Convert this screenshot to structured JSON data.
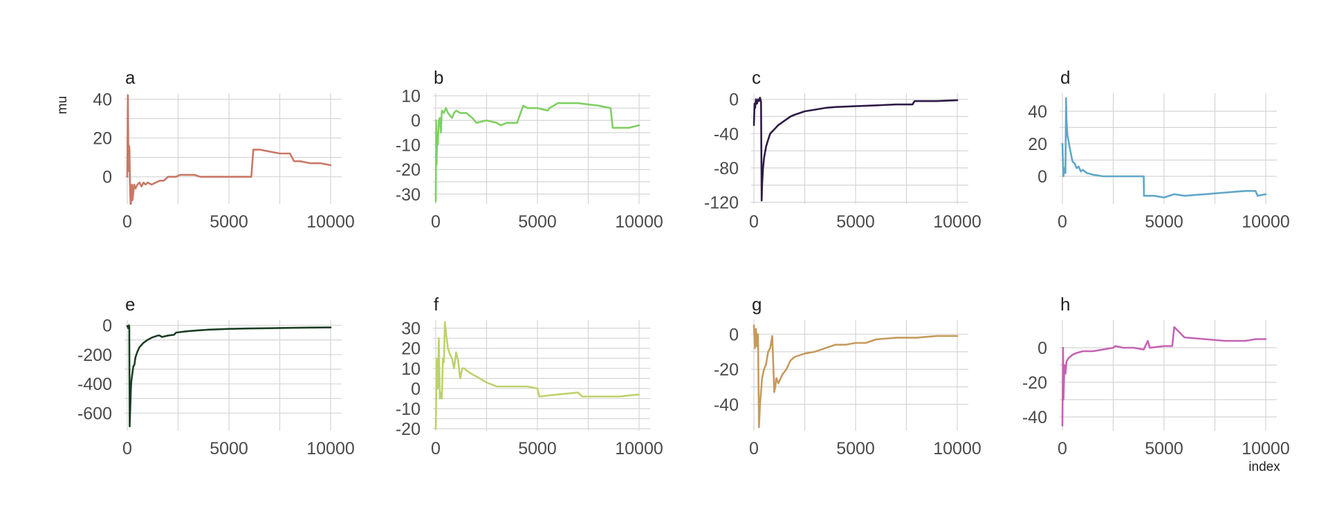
{
  "figure": {
    "ylabel": "mu",
    "xlabel": "index"
  },
  "colors": {
    "grid": "#d4d4d4",
    "tick": "#4a4a4a"
  },
  "chart_data": [
    {
      "panel": "a",
      "type": "line",
      "color": "#c97765",
      "xlim": [
        0,
        10000
      ],
      "ylim": [
        -14,
        43
      ],
      "x_ticks": [
        0,
        5000,
        10000
      ],
      "x_tick_labels": [
        "0",
        "5000",
        "10000"
      ],
      "y_ticks": [
        40,
        20,
        0
      ],
      "y_tick_labels": [
        "40",
        "20",
        "0"
      ],
      "series": [
        {
          "x": [
            0,
            30,
            60,
            90,
            110,
            130,
            160,
            180,
            200,
            230,
            260,
            300,
            340,
            400,
            450,
            500,
            600,
            700,
            800,
            900,
            1000,
            1200,
            1400,
            1600,
            1800,
            2000,
            2200,
            2400,
            2600,
            2800,
            3000,
            3300,
            3600,
            4000,
            4500,
            5000,
            5500,
            6000,
            6100,
            6200,
            6500,
            7000,
            7500,
            8000,
            8200,
            8300,
            8500,
            9000,
            9500,
            10000
          ],
          "y": [
            0,
            42,
            3,
            16,
            14,
            -2,
            -14,
            -14,
            -7,
            -4,
            -12,
            -8,
            -4,
            -6,
            -5,
            -4,
            -3,
            -5,
            -3,
            -4,
            -3,
            -4,
            -3,
            -2,
            -2,
            0,
            0,
            0,
            1,
            1,
            1,
            1,
            0,
            0,
            0,
            0,
            0,
            0,
            0,
            14,
            14,
            13,
            12,
            12,
            8,
            8,
            8,
            7,
            7,
            6
          ]
        }
      ]
    },
    {
      "panel": "b",
      "type": "line",
      "color": "#7fcf62",
      "xlim": [
        0,
        10000
      ],
      "ylim": [
        -34,
        11
      ],
      "x_ticks": [
        0,
        5000,
        10000
      ],
      "x_tick_labels": [
        "0",
        "5000",
        "10000"
      ],
      "y_ticks": [
        10,
        0,
        -10,
        -20,
        -30
      ],
      "y_tick_labels": [
        "10",
        "0",
        "-10",
        "-20",
        "-30"
      ],
      "series": [
        {
          "x": [
            0,
            20,
            40,
            70,
            100,
            150,
            200,
            250,
            300,
            400,
            500,
            600,
            700,
            800,
            900,
            1000,
            1200,
            1500,
            1800,
            2000,
            2500,
            3000,
            3200,
            3500,
            4000,
            4300,
            4500,
            5000,
            5500,
            5600,
            6000,
            6500,
            7000,
            8000,
            8600,
            8700,
            9000,
            9500,
            10000
          ],
          "y": [
            -33,
            0,
            -18,
            -5,
            -10,
            0,
            1,
            -5,
            4,
            3,
            5,
            3,
            2,
            1,
            3,
            4,
            3,
            3,
            1,
            -1,
            0,
            -1,
            -2,
            -1,
            -1,
            6,
            5,
            5,
            4,
            5,
            7,
            7,
            7,
            6,
            5,
            -3,
            -3,
            -3,
            -2
          ]
        }
      ]
    },
    {
      "panel": "c",
      "type": "line",
      "color": "#2c1a45",
      "xlim": [
        0,
        10000
      ],
      "ylim": [
        -122,
        7
      ],
      "x_ticks": [
        0,
        5000,
        10000
      ],
      "x_tick_labels": [
        "0",
        "5000",
        "10000"
      ],
      "y_ticks": [
        0,
        -40,
        -80,
        -120
      ],
      "y_tick_labels": [
        "0",
        "-40",
        "-80",
        "-120"
      ],
      "series": [
        {
          "x": [
            0,
            30,
            60,
            100,
            150,
            200,
            250,
            300,
            350,
            380,
            400,
            450,
            500,
            600,
            700,
            800,
            1000,
            1200,
            1500,
            1800,
            2000,
            2500,
            3000,
            3500,
            4000,
            5000,
            6000,
            7000,
            7500,
            7800,
            7900,
            8500,
            9000,
            10000
          ],
          "y": [
            -30,
            -5,
            -10,
            0,
            -5,
            0,
            -2,
            2,
            -3,
            -118,
            -100,
            -80,
            -68,
            -55,
            -47,
            -40,
            -35,
            -30,
            -25,
            -20,
            -18,
            -14,
            -12,
            -10,
            -9,
            -8,
            -7,
            -6,
            -6,
            -6,
            -2,
            -2,
            -2,
            -1
          ]
        }
      ]
    },
    {
      "panel": "d",
      "type": "line",
      "color": "#5ea7c7",
      "xlim": [
        0,
        10000
      ],
      "ylim": [
        -17,
        51
      ],
      "x_ticks": [
        0,
        5000,
        10000
      ],
      "x_tick_labels": [
        "0",
        "5000",
        "10000"
      ],
      "y_ticks": [
        40,
        20,
        0
      ],
      "y_tick_labels": [
        "40",
        "20",
        "0"
      ],
      "series": [
        {
          "x": [
            0,
            50,
            100,
            150,
            180,
            200,
            250,
            300,
            350,
            400,
            450,
            500,
            600,
            700,
            800,
            900,
            1000,
            1200,
            1500,
            2000,
            2500,
            3000,
            3500,
            4000,
            4010,
            4500,
            5000,
            5500,
            6000,
            7000,
            8000,
            9000,
            9500,
            9600,
            10000
          ],
          "y": [
            20,
            0,
            5,
            2,
            48,
            35,
            25,
            22,
            18,
            15,
            12,
            9,
            8,
            5,
            6,
            3,
            4,
            2,
            1,
            0,
            0,
            0,
            0,
            0,
            -12,
            -12,
            -13,
            -11,
            -12,
            -11,
            -10,
            -9,
            -9,
            -12,
            -11
          ]
        }
      ]
    },
    {
      "panel": "e",
      "type": "line",
      "color": "#1c3d24",
      "xlim": [
        0,
        10000
      ],
      "ylim": [
        -720,
        35
      ],
      "x_ticks": [
        0,
        5000,
        10000
      ],
      "x_tick_labels": [
        "0",
        "5000",
        "10000"
      ],
      "y_ticks": [
        0,
        -200,
        -400,
        -600
      ],
      "y_tick_labels": [
        "0",
        "-200",
        "-400",
        "-600"
      ],
      "series": [
        {
          "x": [
            0,
            50,
            80,
            100,
            120,
            150,
            180,
            200,
            250,
            300,
            350,
            400,
            450,
            500,
            600,
            800,
            1000,
            1200,
            1500,
            1600,
            1700,
            2000,
            2300,
            2400,
            3000,
            3500,
            4000,
            5000,
            6000,
            7000,
            8000,
            9000,
            10000
          ],
          "y": [
            -5,
            -20,
            0,
            -10,
            -690,
            -560,
            -430,
            -380,
            -330,
            -280,
            -270,
            -220,
            -200,
            -180,
            -150,
            -120,
            -100,
            -85,
            -70,
            -70,
            -80,
            -70,
            -65,
            -50,
            -40,
            -35,
            -30,
            -25,
            -22,
            -20,
            -18,
            -16,
            -15
          ]
        }
      ]
    },
    {
      "panel": "f",
      "type": "line",
      "color": "#bdd26a",
      "xlim": [
        0,
        10000
      ],
      "ylim": [
        -21,
        34
      ],
      "x_ticks": [
        0,
        5000,
        10000
      ],
      "x_tick_labels": [
        "0",
        "5000",
        "10000"
      ],
      "y_ticks": [
        30,
        20,
        10,
        0,
        -10,
        -20
      ],
      "y_tick_labels": [
        "30",
        "20",
        "10",
        "0",
        "-10",
        "-20"
      ],
      "series": [
        {
          "x": [
            0,
            50,
            100,
            150,
            200,
            250,
            300,
            350,
            400,
            450,
            500,
            600,
            700,
            800,
            900,
            1000,
            1100,
            1200,
            1300,
            1400,
            1500,
            1800,
            2000,
            2500,
            3000,
            3500,
            4000,
            4500,
            5000,
            5100,
            6000,
            7000,
            7200,
            7500,
            8000,
            9000,
            10000
          ],
          "y": [
            -20,
            15,
            0,
            25,
            -5,
            -2,
            -5,
            15,
            13,
            33,
            28,
            20,
            17,
            15,
            10,
            18,
            14,
            5,
            10,
            10,
            9,
            7,
            6,
            3,
            1,
            1,
            1,
            1,
            0,
            -4,
            -3,
            -2,
            -4,
            -4,
            -4,
            -4,
            -3
          ]
        }
      ]
    },
    {
      "panel": "g",
      "type": "line",
      "color": "#c69a5c",
      "xlim": [
        0,
        10000
      ],
      "ylim": [
        -55,
        8
      ],
      "x_ticks": [
        0,
        5000,
        10000
      ],
      "x_tick_labels": [
        "0",
        "5000",
        "10000"
      ],
      "y_ticks": [
        0,
        -20,
        -40
      ],
      "y_tick_labels": [
        "0",
        "-20",
        "-40"
      ],
      "series": [
        {
          "x": [
            0,
            50,
            100,
            150,
            200,
            250,
            300,
            400,
            500,
            600,
            700,
            800,
            900,
            1000,
            1050,
            1100,
            1200,
            1400,
            1600,
            1800,
            2000,
            2500,
            3000,
            3500,
            4000,
            4500,
            5000,
            5500,
            6000,
            7000,
            8000,
            9000,
            10000
          ],
          "y": [
            5,
            -8,
            3,
            -7,
            0,
            -53,
            -40,
            -25,
            -20,
            -17,
            -10,
            -8,
            -1,
            -33,
            -30,
            -25,
            -28,
            -23,
            -20,
            -15,
            -13,
            -11,
            -10,
            -8,
            -6,
            -6,
            -5,
            -5,
            -3,
            -2,
            -2,
            -1,
            -1
          ]
        }
      ]
    },
    {
      "panel": "h",
      "type": "line",
      "color": "#c562b3",
      "xlim": [
        0,
        10000
      ],
      "ylim": [
        -48,
        16
      ],
      "x_ticks": [
        0,
        5000,
        10000
      ],
      "x_tick_labels": [
        "0",
        "5000",
        "10000"
      ],
      "y_ticks": [
        0,
        -20,
        -40
      ],
      "y_tick_labels": [
        "0",
        "-20",
        "-40"
      ],
      "series": [
        {
          "x": [
            0,
            30,
            50,
            100,
            150,
            200,
            300,
            400,
            500,
            700,
            1000,
            1200,
            1500,
            2000,
            2500,
            2600,
            3000,
            3500,
            4000,
            4200,
            4300,
            5000,
            5400,
            5500,
            6000,
            7000,
            8000,
            9000,
            9500,
            10000
          ],
          "y": [
            -45,
            0,
            -30,
            -10,
            -15,
            -8,
            -6,
            -5,
            -4,
            -3,
            -2,
            -2,
            -2,
            -1,
            0,
            1,
            0,
            0,
            -1,
            4,
            0,
            1,
            1,
            12,
            6,
            5,
            4,
            4,
            5,
            5
          ]
        }
      ]
    }
  ]
}
